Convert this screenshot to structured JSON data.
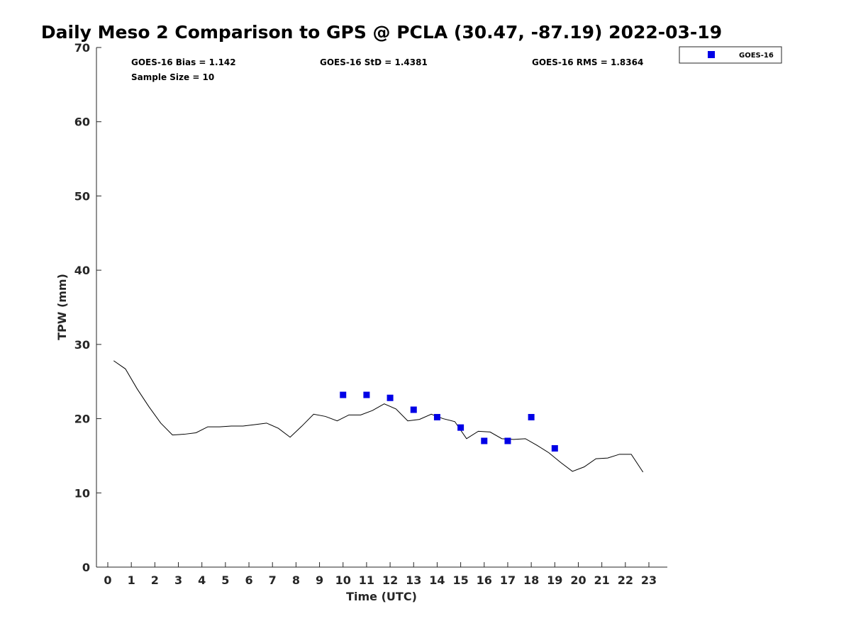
{
  "chart_data": {
    "type": "line",
    "title": "Daily Meso 2 Comparison to GPS @ PCLA (30.47, -87.19) 2022-03-19",
    "xlabel": "Time (UTC)",
    "ylabel": "TPW (mm)",
    "xlim": [
      -0.5,
      23.75
    ],
    "ylim": [
      0,
      70
    ],
    "xticks": [
      0,
      1,
      2,
      3,
      4,
      5,
      6,
      7,
      8,
      9,
      10,
      11,
      12,
      13,
      14,
      15,
      16,
      17,
      18,
      19,
      20,
      21,
      22,
      23
    ],
    "yticks": [
      0,
      10,
      20,
      30,
      40,
      50,
      60,
      70
    ],
    "xtick_labels": [
      "0",
      "1",
      "2",
      "3",
      "4",
      "5",
      "6",
      "7",
      "8",
      "9",
      "10",
      "11",
      "12",
      "13",
      "14",
      "15",
      "16",
      "17",
      "18",
      "19",
      "20",
      "21",
      "22",
      "23"
    ],
    "ytick_labels": [
      "0",
      "10",
      "20",
      "30",
      "40",
      "50",
      "60",
      "70"
    ],
    "grid": false,
    "legend_position": "top-right, outside plot",
    "stats": {
      "bias": "GOES-16 Bias = 1.142",
      "std": "GOES-16 StD = 1.4381",
      "rms": "GOES-16 RMS = 1.8364",
      "sample": "Sample Size = 10"
    },
    "series": [
      {
        "kind": "line",
        "color": "#000000",
        "x": [
          0.25,
          0.75,
          1.25,
          1.75,
          2.25,
          2.75,
          3.25,
          3.75,
          4.25,
          4.75,
          5.25,
          5.75,
          6.25,
          6.75,
          7.25,
          7.75,
          8.25,
          8.75,
          9.25,
          9.75,
          10.25,
          10.75,
          11.25,
          11.75,
          12.25,
          12.75,
          13.25,
          13.75,
          14.25,
          14.75,
          15.25,
          15.75,
          16.25,
          16.75,
          17.25,
          17.75,
          18.25,
          18.75,
          19.25,
          19.75,
          20.25,
          20.75,
          21.25,
          21.75,
          22.25,
          22.75
        ],
        "y": [
          27.8,
          26.7,
          24.0,
          21.6,
          19.4,
          17.8,
          17.9,
          18.1,
          18.9,
          18.9,
          19.0,
          19.0,
          19.2,
          19.4,
          18.7,
          17.5,
          19.0,
          20.6,
          20.3,
          19.7,
          20.5,
          20.5,
          21.1,
          22.0,
          21.3,
          19.7,
          19.9,
          20.6,
          20.0,
          19.6,
          17.3,
          18.3,
          18.2,
          17.3,
          17.2,
          17.3,
          16.4,
          15.4,
          14.1,
          12.9,
          13.5,
          14.6,
          14.7,
          15.2,
          15.2,
          12.8
        ]
      },
      {
        "kind": "scatter",
        "name": "GOES-16",
        "marker": "square",
        "color": "#0000e6",
        "x": [
          10,
          11,
          12,
          13,
          14,
          15,
          16,
          17,
          18,
          19
        ],
        "y": [
          23.2,
          23.2,
          22.8,
          21.2,
          20.2,
          18.8,
          17.0,
          17.0,
          20.2,
          16.0
        ]
      }
    ]
  }
}
